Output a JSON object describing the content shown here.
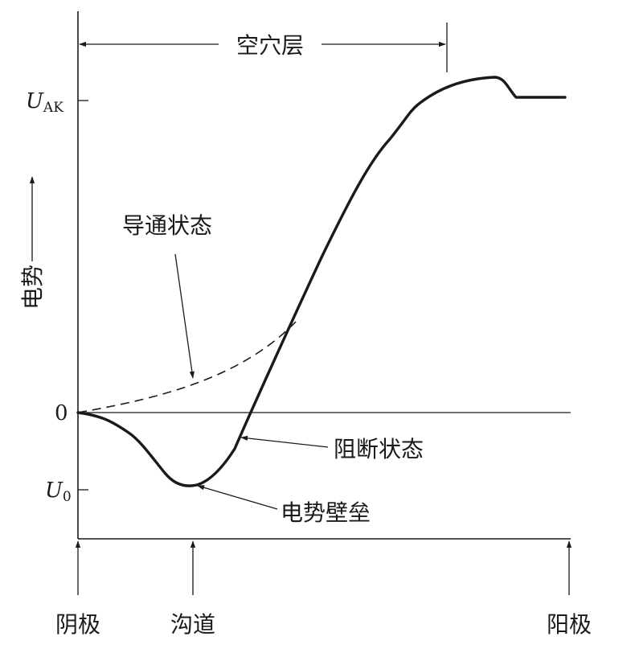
{
  "labels": {
    "depletion_layer": "空穴层",
    "u_ak_main": "U",
    "u_ak_sub": "AK",
    "zero": "0",
    "u0_main": "U",
    "u0_sub": "0",
    "y_axis": "电势",
    "on_state": "导通状态",
    "off_state": "阻断状态",
    "barrier": "电势壁垒",
    "cathode": "阴极",
    "channel": "沟道",
    "anode": "阳极"
  },
  "colors": {
    "ink": "#1a1a1a",
    "background": "#ffffff"
  }
}
